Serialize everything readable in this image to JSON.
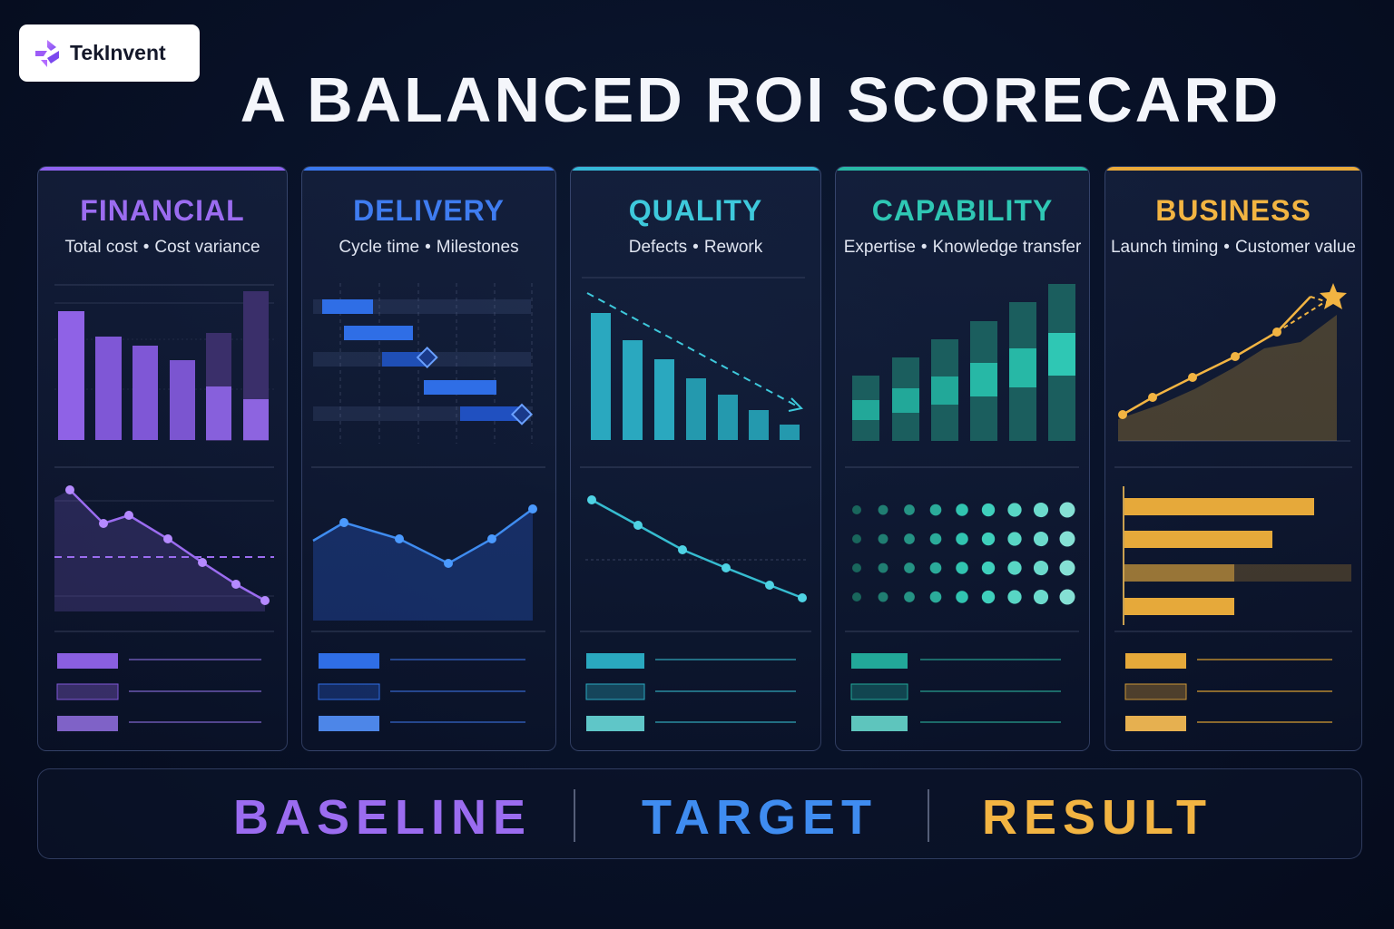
{
  "brand": {
    "name": "TekInvent"
  },
  "title": "A BALANCED ROI SCORECARD",
  "cards": [
    {
      "key": "financial",
      "title": "FINANCIAL",
      "sub_a": "Total cost",
      "sub_b": "Cost variance",
      "color": "#9b6cf0",
      "color_light": "#8a67d9"
    },
    {
      "key": "delivery",
      "title": "DELIVERY",
      "sub_a": "Cycle time",
      "sub_b": "Milestones",
      "color": "#3f7cf0",
      "color_light": "#2f6ee6"
    },
    {
      "key": "quality",
      "title": "QUALITY",
      "sub_a": "Defects",
      "sub_b": "Rework",
      "color": "#3ec9dc",
      "color_light": "#2aa8bf"
    },
    {
      "key": "capability",
      "title": "CAPABILITY",
      "sub_a": "Expertise",
      "sub_b": "Knowledge transfer",
      "color": "#2fc7b4",
      "color_light": "#22a899"
    },
    {
      "key": "business",
      "title": "BUSINESS",
      "sub_a": "Launch timing",
      "sub_b": "Customer value",
      "color": "#f2b442",
      "color_light": "#e6a93a"
    }
  ],
  "separator_glyph": "•",
  "bottom": {
    "baseline": "BASELINE",
    "target": "TARGET",
    "result": "RESULT",
    "baseline_color": "#9b6cf0",
    "target_color": "#3f8cf0",
    "result_color": "#f2b442"
  }
}
